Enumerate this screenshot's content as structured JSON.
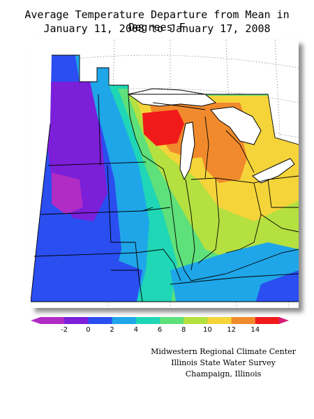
{
  "title_line1": "Average Temperature Departure from Mean in Degrees F",
  "title_line2": "January 11, 2008 to January 17, 2008",
  "legend": {
    "unit": "Degrees F",
    "labels": [
      "-2",
      "0",
      "2",
      "4",
      "6",
      "8",
      "10",
      "12",
      "14"
    ],
    "bins": [
      {
        "range": "< -2",
        "color": "#b02cc4"
      },
      {
        "range": "-2 to 0",
        "color": "#7b1fd8"
      },
      {
        "range": "0 to 2",
        "color": "#2a4ef0"
      },
      {
        "range": "2 to 4",
        "color": "#1fa6e8"
      },
      {
        "range": "4 to 6",
        "color": "#1fd6b6"
      },
      {
        "range": "6 to 8",
        "color": "#5ee07a"
      },
      {
        "range": "8 to 10",
        "color": "#b4e040"
      },
      {
        "range": "10 to 12",
        "color": "#f5d43a"
      },
      {
        "range": "12 to 14",
        "color": "#f08a2c"
      },
      {
        "range": "> 14",
        "color": "#f01a1a"
      }
    ],
    "end_color": "#d81e78"
  },
  "credits": {
    "line1": "Midwestern Regional Climate Center",
    "line2": "Illinois State Water Survey",
    "line3": "Champaign, Illinois"
  }
}
